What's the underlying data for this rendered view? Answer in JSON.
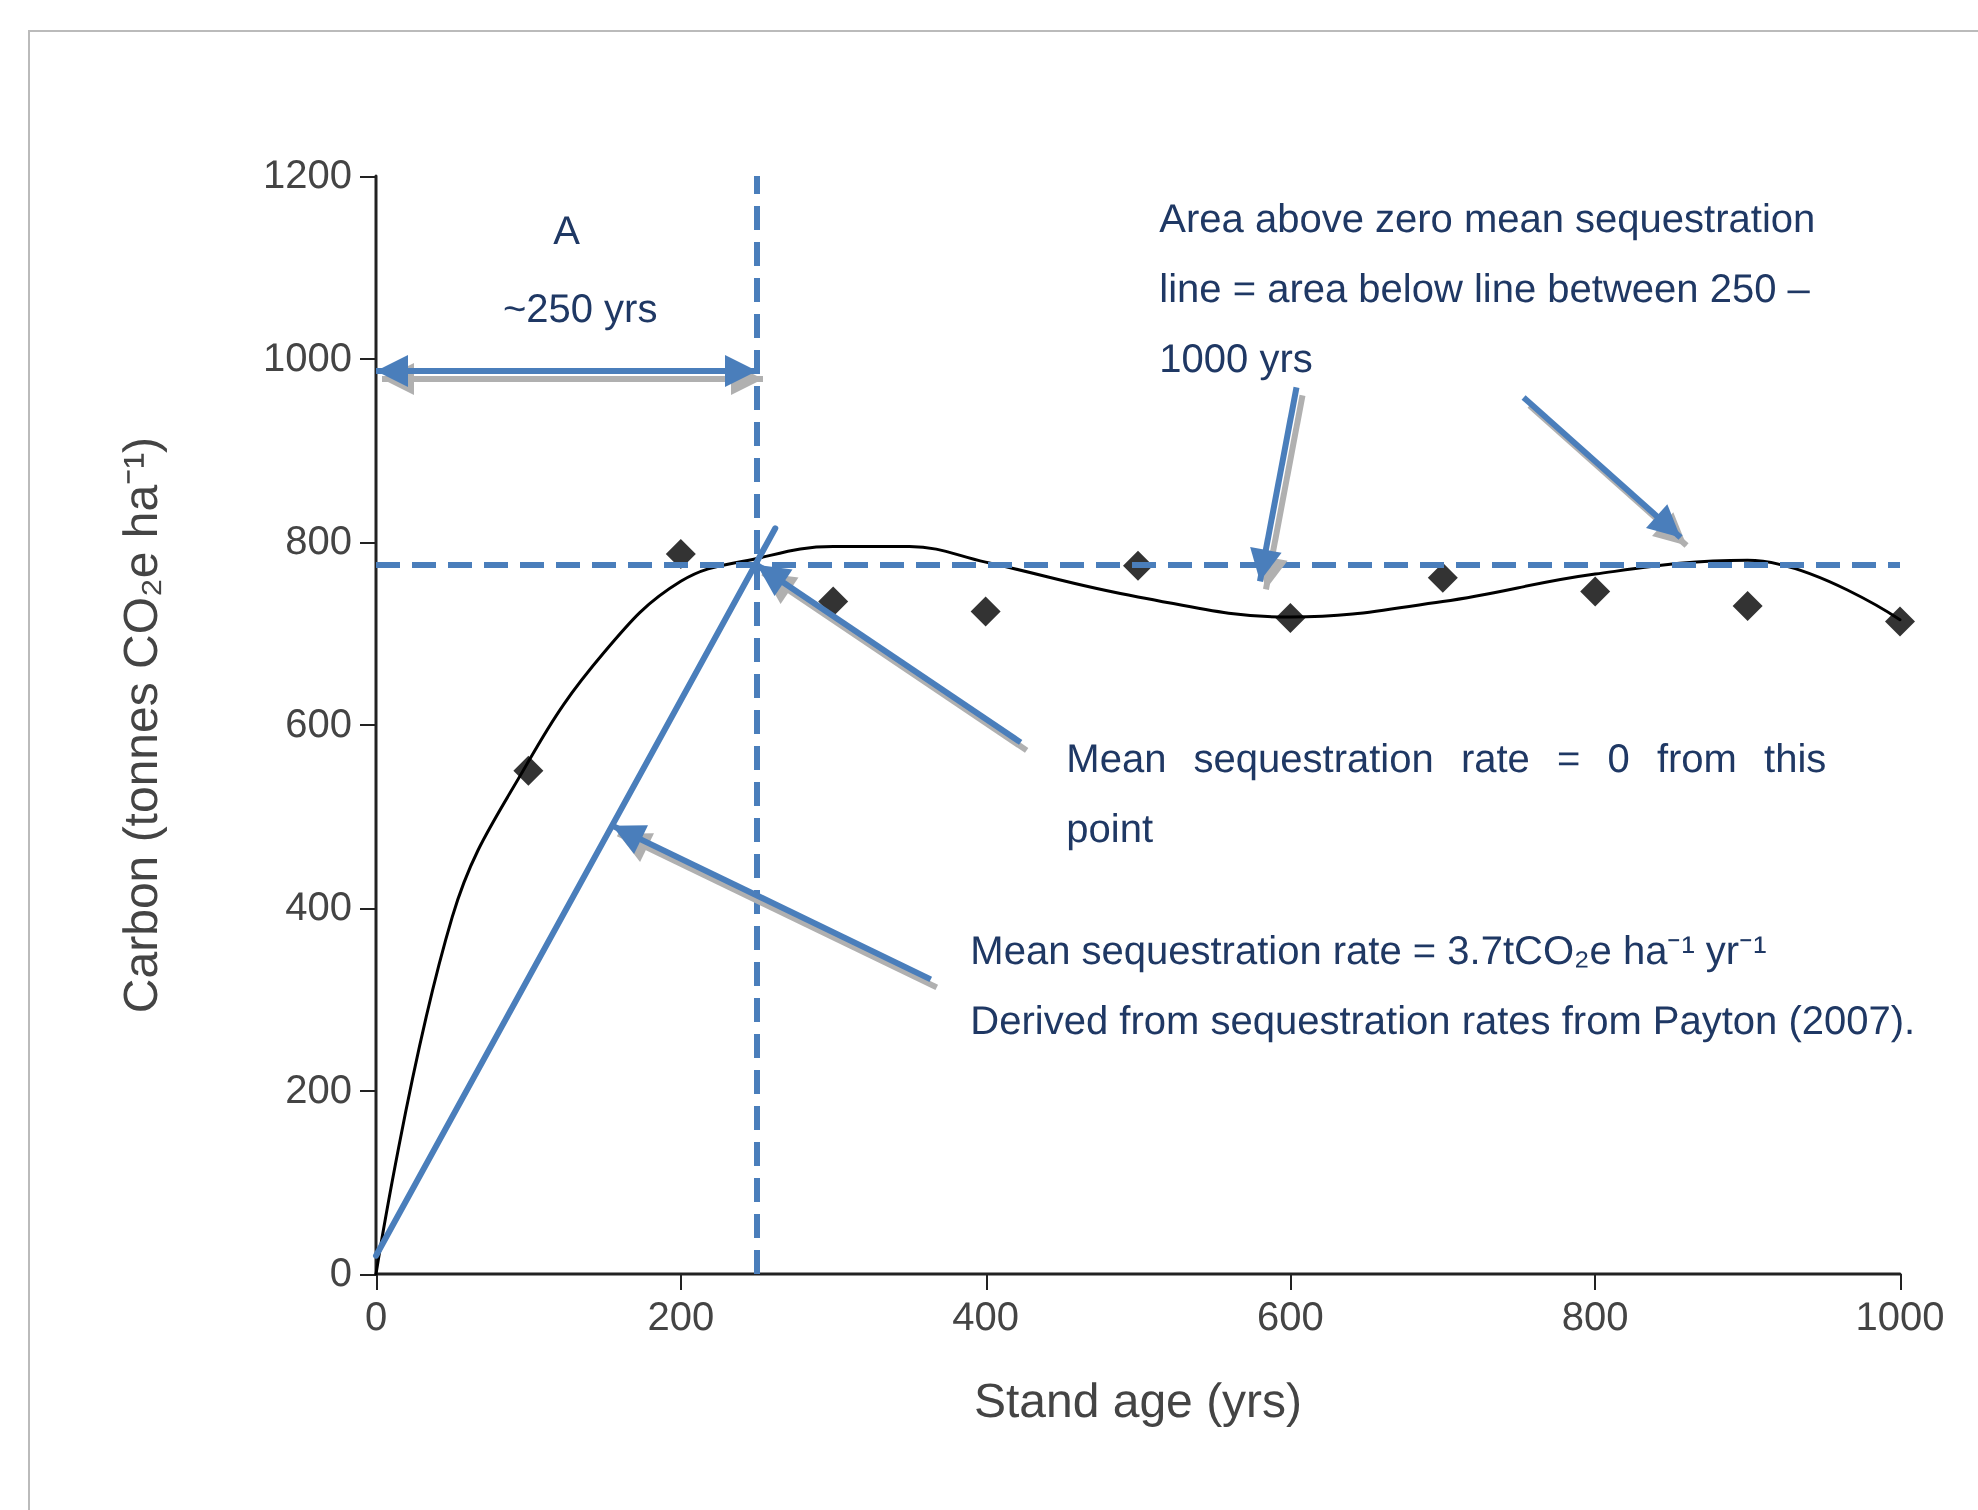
{
  "chart_data": {
    "type": "scatter",
    "xlabel": "Stand age (yrs)",
    "ylabel": "Carbon (tonnes CO₂e ha⁻¹)",
    "xlim": [
      0,
      1000
    ],
    "ylim": [
      0,
      1200
    ],
    "xticks": [
      0,
      200,
      400,
      600,
      800,
      {
        "value": 1000,
        "label": "1000"
      }
    ],
    "yticks": [
      0,
      200,
      400,
      600,
      800,
      {
        "value": 1000,
        "label": "1000"
      },
      {
        "value": 1200,
        "label": "1200"
      }
    ],
    "grid": false,
    "series": [
      {
        "color": "#000000",
        "marker": "diamond",
        "x": [
          100,
          200,
          300,
          400,
          500,
          600,
          700,
          800,
          900,
          1000
        ],
        "values": [
          550,
          787,
          735,
          724,
          774,
          717,
          761,
          746,
          730,
          713
        ]
      },
      {
        "type": "line",
        "color": "#000000",
        "marker": "none",
        "line_style": "solid",
        "x": [
          0,
          50,
          100,
          150,
          200,
          250,
          300,
          350,
          400,
          500,
          600,
          700,
          800,
          900,
          1000
        ],
        "values": [
          0,
          390,
          560,
          680,
          757,
          782,
          795,
          795,
          778,
          740,
          718,
          735,
          765,
          780,
          715
        ]
      },
      {
        "type": "line",
        "color": "#4a7ebb",
        "marker": "none",
        "line_style": "solid",
        "x": [
          0,
          262
        ],
        "values": [
          20,
          815
        ]
      }
    ],
    "ref_lines": [
      {
        "axis": "y",
        "value": 775,
        "color": "#4a7ebb",
        "line_style": "dashed"
      },
      {
        "axis": "x",
        "value": 250,
        "color": "#4a7ebb",
        "line_style": "dashed"
      }
    ],
    "annotations": [
      "A",
      "~250 yrs",
      "Area above zero mean sequestration line = area below line between 250 – 1000 yrs",
      {
        "text": "Mean sequestration rate = 0 from this point",
        "x": 250,
        "y": 775
      },
      {
        "text": "Mean sequestration rate = 3.7tCO₂e ha⁻¹ yr⁻¹",
        "x": 155,
        "y": 490
      },
      "Derived from sequestration rates from Payton (2007)."
    ]
  }
}
